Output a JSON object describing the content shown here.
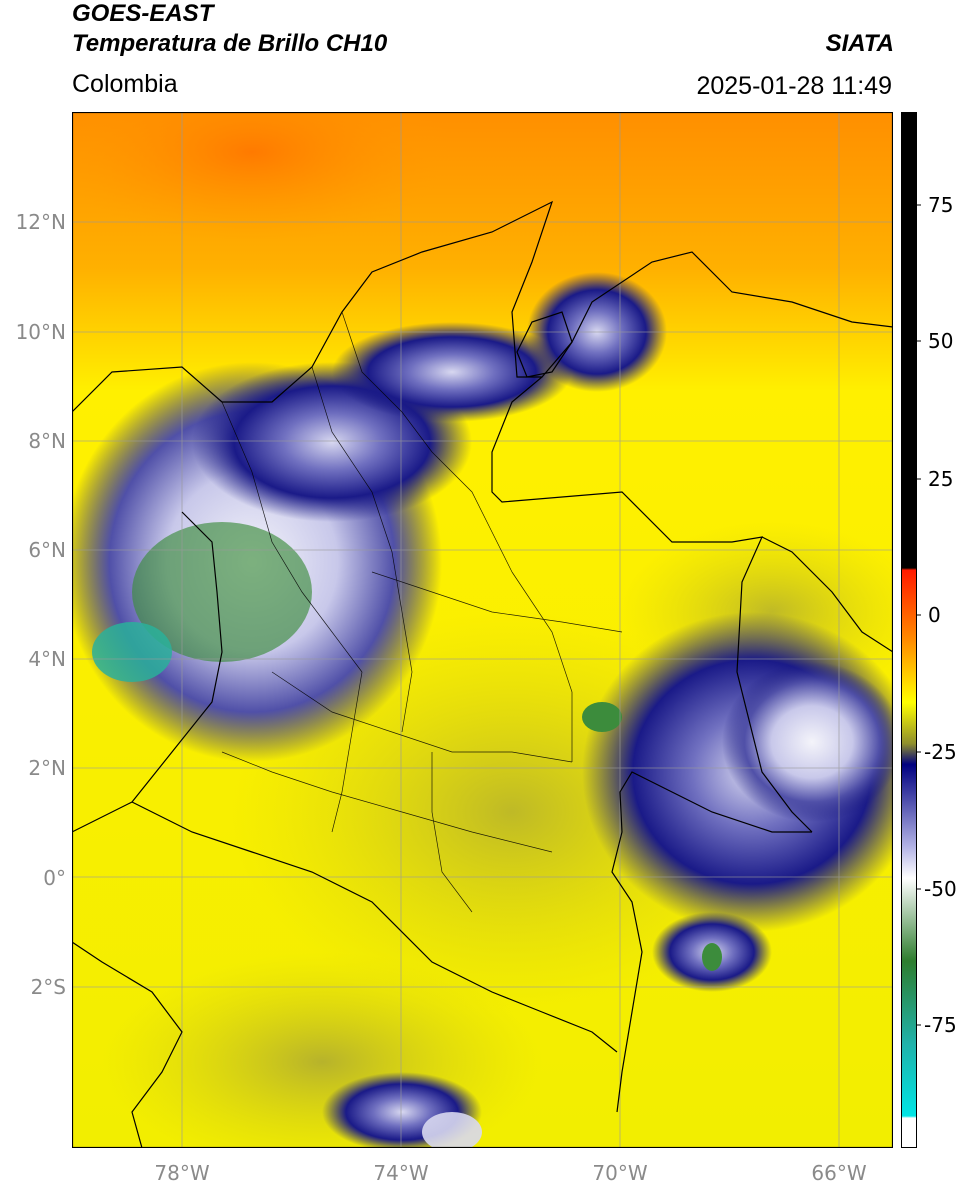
{
  "header": {
    "title_line1": "GOES-EAST",
    "title_line2": "Temperatura de Brillo CH10",
    "region": "Colombia",
    "brand": "SIATA",
    "timestamp": "2025-01-28 11:49"
  },
  "axes": {
    "longitude_ticks": [
      "78°W",
      "74°W",
      "70°W",
      "66°W"
    ],
    "latitude_ticks": [
      "12°N",
      "10°N",
      "8°N",
      "6°N",
      "4°N",
      "2°N",
      "0°",
      "2°S"
    ]
  },
  "colorbar": {
    "tick_labels": [
      "75",
      "50",
      "25",
      "0",
      "-25",
      "-50",
      "-75"
    ],
    "colors": {
      "warm_top": "#000000",
      "red": "#ff1a00",
      "orange": "#ff8c00",
      "yellow": "#ffff00",
      "olive": "#8e8e2c",
      "navy": "#000080",
      "lavender": "#b4b4e6",
      "white": "#ffffff",
      "green": "#2e7d2e",
      "teal": "#20b2aa",
      "cyan": "#00e5e5"
    }
  },
  "map": {
    "colors": {
      "background_yellow": "#f5f000",
      "north_orange": "#ff9c00",
      "cloud_navy": "#1a1a80",
      "cloud_white": "#e8e8f4",
      "cloud_green": "#3c8c3c",
      "cloud_teal": "#2ab09a",
      "olive_patch": "#c8c214",
      "borders": "#000000",
      "gridlines": "#9a9a9a"
    }
  }
}
